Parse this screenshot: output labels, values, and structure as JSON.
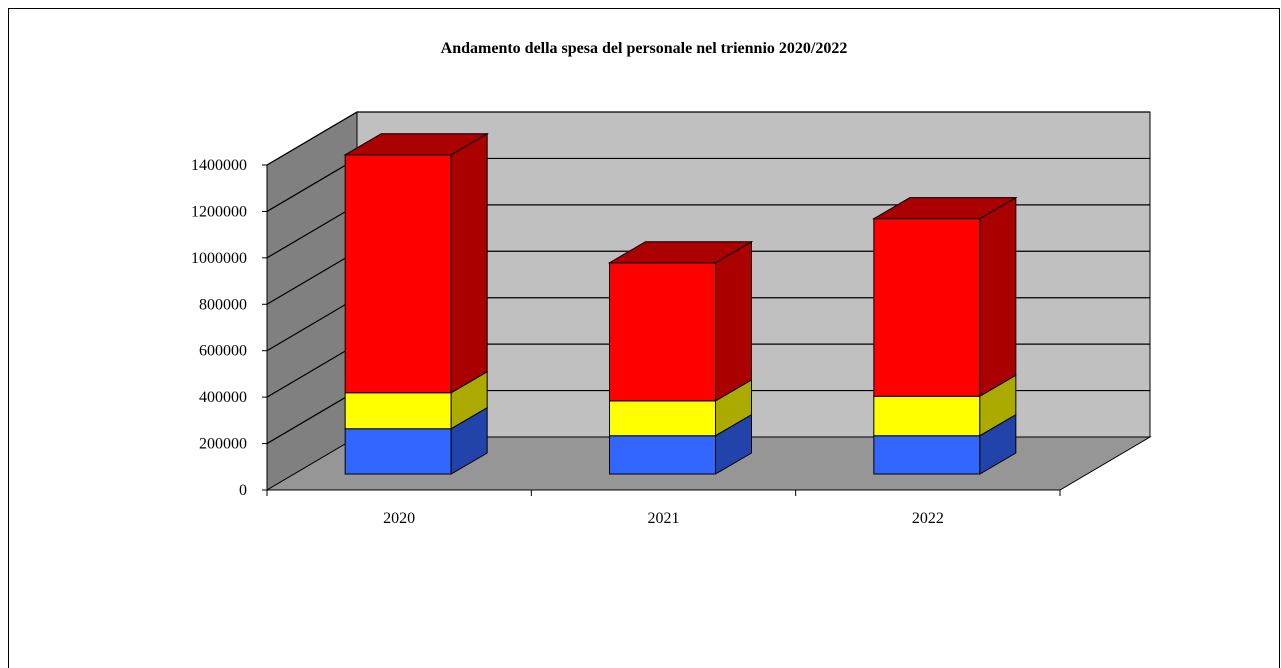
{
  "chart_data": {
    "type": "bar",
    "stacked": true,
    "three_d": true,
    "title": "Andamento della spesa del personale nel triennio 2020/2022",
    "xlabel": "",
    "ylabel": "",
    "categories": [
      "2020",
      "2021",
      "2022"
    ],
    "ylim": [
      0,
      1400000
    ],
    "yticks": [
      0,
      200000,
      400000,
      600000,
      800000,
      1000000,
      1200000,
      1400000
    ],
    "ytick_labels": [
      "0",
      "200000",
      "400000",
      "600000",
      "800000",
      "1000000",
      "1200000",
      "1400000"
    ],
    "grid": true,
    "legend": "none",
    "series": [
      {
        "values": [
          195000,
          165000,
          165000
        ],
        "color": "#3366ff",
        "side_color": "#2244aa"
      },
      {
        "values": [
          155000,
          150000,
          170000
        ],
        "color": "#ffff00",
        "side_color": "#aaaa00"
      },
      {
        "values": [
          1025000,
          595000,
          765000
        ],
        "color": "#ff0000",
        "side_color": "#aa0000"
      }
    ],
    "colors": {
      "back_wall": "#c0c0c0",
      "side_wall": "#808080",
      "floor": "#969696"
    }
  }
}
